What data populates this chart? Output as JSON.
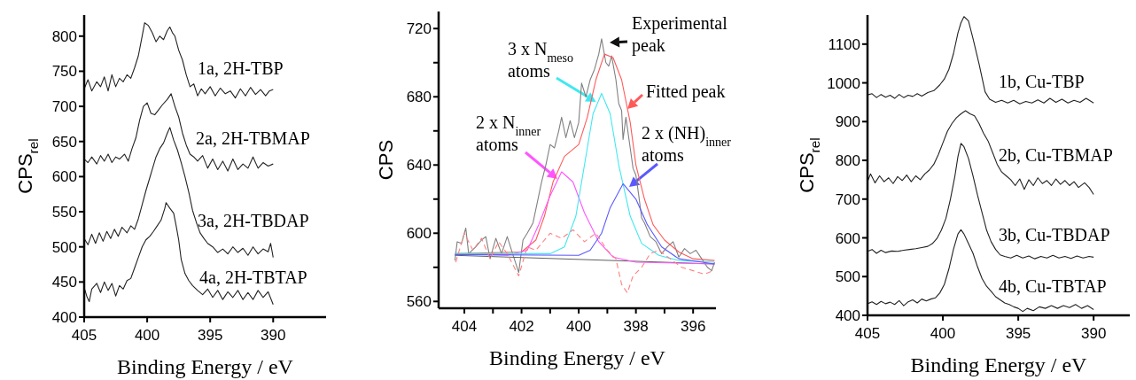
{
  "chart_data": [
    {
      "type": "line",
      "ylabel": "CPS$_{rel}$",
      "xlabel": "Binding Energy / eV",
      "xlim": [
        405,
        385.8
      ],
      "ylim": [
        400,
        830
      ],
      "xticks": [
        405,
        400,
        395,
        390
      ],
      "yticks": [
        400,
        450,
        500,
        550,
        600,
        650,
        700,
        750,
        800
      ],
      "marker": "none",
      "line_style": "solid",
      "series": [
        {
          "color": "#222222",
          "x": [
            405,
            404.7,
            404.4,
            404,
            403.7,
            403.4,
            403.1,
            402.8,
            402.5,
            402.2,
            401.9,
            401.6,
            401.3,
            401.0,
            400.7,
            400.4,
            400.2,
            399.9,
            399.6,
            399.3,
            399.0,
            398.7,
            398.4,
            398.2,
            398.0,
            397.8,
            397.5,
            397.2,
            396.9,
            396.6,
            396.3,
            396.0,
            395.7,
            395.4,
            395.0,
            394.6,
            394.2,
            393.8,
            393.4,
            393.0,
            392.6,
            392.2,
            391.8,
            391.4,
            391.0,
            390.6,
            390.3,
            390.0
          ],
          "name": "1a, 2H-TBP",
          "values": [
            725,
            738,
            722,
            735,
            728,
            742,
            722,
            745,
            728,
            740,
            735,
            745,
            740,
            755,
            772,
            800,
            819,
            815,
            805,
            792,
            800,
            795,
            808,
            813,
            805,
            800,
            780,
            766,
            745,
            728,
            732,
            715,
            725,
            718,
            728,
            715,
            726,
            718,
            722,
            712,
            725,
            715,
            727,
            717,
            724,
            715,
            722,
            724
          ]
        },
        {
          "color": "#222222",
          "x": [
            405,
            404.7,
            404.4,
            404.0,
            403.7,
            403.4,
            403.1,
            402.8,
            402.5,
            402.2,
            401.8,
            401.5,
            401.2,
            400.9,
            400.6,
            400.3,
            400.0,
            399.7,
            399.4,
            399.1,
            398.8,
            398.4,
            398.1,
            397.8,
            397.5,
            397.2,
            396.9,
            396.6,
            396.3,
            396.0,
            395.6,
            395.2,
            394.8,
            394.4,
            394.0,
            393.6,
            393.2,
            392.8,
            392.4,
            392.0,
            391.6,
            391.2,
            390.8,
            390.4,
            390.0
          ],
          "name": "2a, 2H-TBMAP",
          "values": [
            625,
            620,
            628,
            618,
            630,
            622,
            632,
            620,
            628,
            625,
            632,
            622,
            640,
            655,
            680,
            700,
            705,
            690,
            688,
            695,
            702,
            710,
            718,
            700,
            685,
            662,
            645,
            632,
            628,
            622,
            630,
            612,
            625,
            610,
            622,
            608,
            625,
            610,
            618,
            612,
            628,
            612,
            620,
            615,
            618
          ]
        },
        {
          "color": "#222222",
          "x": [
            405,
            404.7,
            404.4,
            404.1,
            403.8,
            403.5,
            403.2,
            402.9,
            402.6,
            402.3,
            402.0,
            401.6,
            401.3,
            401.0,
            400.7,
            400.4,
            400.1,
            399.8,
            399.6,
            399.3,
            399.0,
            398.7,
            398.4,
            398.2,
            397.9,
            397.6,
            397.3,
            397.0,
            396.7,
            396.4,
            396.1,
            395.8,
            395.5,
            395.2,
            394.8,
            394.4,
            394.0,
            393.6,
            393.2,
            392.8,
            392.4,
            392.0,
            391.6,
            391.2,
            390.8,
            390.4,
            390.2,
            390.0
          ],
          "name": "3a, 2H-TBDAP",
          "values": [
            512,
            503,
            518,
            505,
            520,
            508,
            522,
            512,
            525,
            515,
            528,
            520,
            530,
            525,
            540,
            560,
            580,
            598,
            610,
            628,
            640,
            648,
            662,
            670,
            652,
            638,
            620,
            600,
            578,
            552,
            535,
            520,
            512,
            505,
            500,
            492,
            497,
            490,
            500,
            492,
            498,
            488,
            500,
            490,
            497,
            493,
            505,
            485
          ]
        },
        {
          "color": "#222222",
          "x": [
            405,
            404.8,
            404.6,
            404.4,
            404.0,
            403.7,
            403.4,
            403.1,
            402.8,
            402.5,
            402.2,
            401.9,
            401.6,
            401.3,
            401.0,
            400.7,
            400.4,
            400.1,
            399.8,
            399.5,
            399.2,
            398.9,
            398.6,
            398.5,
            398.2,
            397.9,
            397.7,
            397.5,
            397.3,
            397.0,
            396.7,
            396.4,
            396.0,
            395.6,
            395.2,
            394.8,
            394.4,
            394.0,
            393.6,
            393.2,
            392.8,
            392.4,
            392.0,
            391.6,
            391.2,
            390.8,
            390.4,
            390.0
          ],
          "name": "4a, 2H-TBTAP",
          "values": [
            442,
            430,
            422,
            440,
            448,
            435,
            450,
            438,
            448,
            430,
            445,
            440,
            452,
            455,
            470,
            485,
            500,
            510,
            515,
            522,
            530,
            538,
            555,
            563,
            555,
            548,
            530,
            510,
            482,
            462,
            452,
            445,
            438,
            432,
            440,
            428,
            438,
            425,
            436,
            428,
            438,
            425,
            435,
            425,
            438,
            428,
            436,
            418
          ]
        }
      ]
    },
    {
      "type": "line",
      "ylabel": "CPS",
      "xlabel": "Binding Energy / eV",
      "xlim": [
        404.9,
        395.2
      ],
      "ylim": [
        556,
        730
      ],
      "xticks": [
        404,
        {
          "value": 403,
          "label": null
        },
        402,
        {
          "value": 401,
          "label": null
        },
        400,
        {
          "value": 399,
          "label": null
        },
        398,
        {
          "value": 397,
          "label": null
        },
        396
      ],
      "yticks": [
        560,
        {
          "value": 580,
          "label": null
        },
        600,
        {
          "value": 620,
          "label": null
        },
        640,
        {
          "value": 660,
          "label": null
        },
        680,
        {
          "value": 700,
          "label": null
        },
        720
      ],
      "marker": "none",
      "line_style": "solid",
      "series": [
        {
          "color": "#808080",
          "x": [
            404.33,
            404.25,
            404.1,
            403.95,
            403.85,
            403.6,
            403.4,
            403.25,
            403.1,
            402.9,
            402.7,
            402.5,
            402.35,
            402.1,
            401.95,
            401.8,
            401.6,
            401.45,
            401.3,
            401.15,
            401.0,
            400.85,
            400.7,
            400.6,
            400.45,
            400.3,
            400.15,
            400.0,
            399.9,
            399.75,
            399.6,
            399.45,
            399.3,
            399.2,
            399.05,
            398.95,
            398.85,
            398.7,
            398.6,
            398.5,
            398.45,
            398.35,
            398.2,
            398.1,
            398.0,
            397.9,
            397.8,
            397.7,
            397.5,
            397.3,
            397.1,
            396.9,
            396.7,
            396.5,
            396.3,
            396.1,
            395.9,
            395.7,
            395.5,
            395.35,
            395.25
          ],
          "values": [
            584,
            595,
            594,
            603,
            588,
            592,
            596,
            598,
            585,
            597,
            588,
            598,
            590,
            577,
            596,
            600,
            606,
            618,
            630,
            640,
            652,
            650,
            660,
            668,
            656,
            666,
            656,
            665,
            688,
            680,
            690,
            696,
            705,
            714,
            700,
            698,
            704,
            690,
            676,
            672,
            655,
            668,
            650,
            638,
            634,
            622,
            609,
            606,
            598,
            595,
            588,
            592,
            595,
            586,
            591,
            588,
            590,
            585,
            580,
            578,
            583
          ]
        },
        {
          "color": "#606060",
          "x": [
            404.33,
            395.25
          ],
          "values": [
            587,
            582
          ]
        },
        {
          "color": "#ff5a5a",
          "x": [
            404.33,
            402.0,
            401.5,
            401.2,
            400.9,
            400.5,
            400.0,
            399.7,
            399.4,
            399.1,
            398.8,
            398.5,
            398.2,
            398.0,
            397.7,
            397.4,
            397.0,
            396.5,
            396.0,
            395.25
          ],
          "values": [
            588,
            589,
            596,
            610,
            630,
            645,
            652,
            668,
            690,
            705,
            703,
            690,
            665,
            640,
            620,
            605,
            596,
            589,
            585,
            584
          ]
        },
        {
          "color": "#ff55ff",
          "x": [
            404.33,
            402.5,
            401.8,
            401.4,
            401.0,
            400.6,
            400.2,
            399.8,
            399.3,
            398.8,
            398.0,
            395.25
          ],
          "values": [
            588,
            587,
            590,
            605,
            622,
            636,
            630,
            612,
            595,
            586,
            583,
            582
          ]
        },
        {
          "color": "#40e8f0",
          "x": [
            404.33,
            401.0,
            400.5,
            400.1,
            399.8,
            399.5,
            399.2,
            398.9,
            398.6,
            398.2,
            397.8,
            397.2,
            396.5,
            395.25
          ],
          "values": [
            588,
            588,
            592,
            610,
            640,
            670,
            682,
            670,
            640,
            610,
            594,
            587,
            584,
            583
          ]
        },
        {
          "color": "#5a5aff",
          "x": [
            404.33,
            400.0,
            399.6,
            399.2,
            398.9,
            398.45,
            398.0,
            397.6,
            397.1,
            396.5,
            395.25
          ],
          "values": [
            587.5,
            587,
            590,
            600,
            615,
            629,
            620,
            605,
            592,
            585,
            582
          ]
        },
        {
          "color": "#ff8080",
          "line_style": "dashed",
          "x": [
            404.3,
            404.0,
            403.7,
            403.4,
            403.1,
            402.8,
            402.5,
            402.1,
            401.8,
            401.5,
            401.0,
            400.6,
            400.2,
            399.8,
            399.4,
            399.0,
            398.7,
            398.5,
            398.3,
            398.1,
            397.8,
            397.5,
            397.2,
            396.8,
            396.4,
            396.0,
            395.6,
            395.3
          ],
          "values": [
            583,
            600,
            590,
            597,
            585,
            595,
            588,
            575,
            592,
            590,
            600,
            597,
            602,
            595,
            600,
            590,
            585,
            570,
            565,
            575,
            580,
            588,
            590,
            585,
            580,
            578,
            576,
            578
          ]
        }
      ],
      "annotations": [
        "Experimental peak",
        {
          "text": "3 x N$_{meso}$ atoms",
          "x": 399.4,
          "y": 677
        },
        "Fitted peak",
        "2 x N$_{inner}$ atoms",
        "2 x (NH)$_{inner}$ atoms"
      ]
    },
    {
      "type": "line",
      "ylabel": "CPS$_{rel}$",
      "xlabel": "Binding Energy / eV",
      "xlim": [
        405,
        387.6
      ],
      "ylim": [
        400,
        1175
      ],
      "xticks": [
        405,
        400,
        395,
        390
      ],
      "yticks": [
        400,
        500,
        600,
        700,
        800,
        900,
        1000,
        1100
      ],
      "marker": "none",
      "line_style": "solid",
      "series": [
        {
          "color": "#222222",
          "x": [
            405,
            404.7,
            404.4,
            404.1,
            403.8,
            403.5,
            403.2,
            402.9,
            402.6,
            402.3,
            402.0,
            401.7,
            401.4,
            401.0,
            400.6,
            400.2,
            399.9,
            399.6,
            399.3,
            399.0,
            398.8,
            398.6,
            398.3,
            398.0,
            397.6,
            397.2,
            396.9,
            396.5,
            396.1,
            395.7,
            395.3,
            394.9,
            394.5,
            394.1,
            393.7,
            393.3,
            392.9,
            392.5,
            392.1,
            391.7,
            391.3,
            390.9,
            390.5,
            390.0
          ],
          "name": "1b, Cu-TBP",
          "values": [
            969,
            972,
            962,
            970,
            963,
            968,
            960,
            970,
            962,
            968,
            965,
            972,
            966,
            975,
            980,
            995,
            1010,
            1035,
            1075,
            1129,
            1155,
            1171,
            1160,
            1114,
            1049,
            977,
            958,
            950,
            955,
            948,
            955,
            946,
            952,
            948,
            956,
            948,
            960,
            950,
            958,
            948,
            955,
            950,
            960,
            948
          ]
        },
        {
          "color": "#222222",
          "x": [
            405,
            404.8,
            404.5,
            404.2,
            403.9,
            403.6,
            403.3,
            403.0,
            402.7,
            402.4,
            402.1,
            401.8,
            401.5,
            401.2,
            400.9,
            400.6,
            400.3,
            400.0,
            399.7,
            399.4,
            399.1,
            398.8,
            398.5,
            398.2,
            397.9,
            397.6,
            397.3,
            397.0,
            396.7,
            396.4,
            396.1,
            395.8,
            395.5,
            395.2,
            394.9,
            394.6,
            394.3,
            394.0,
            393.7,
            393.4,
            393.1,
            392.8,
            392.5,
            392.2,
            391.9,
            391.6,
            391.3,
            391.0,
            390.6,
            390.3,
            390.0
          ],
          "name": "2b, Cu-TBMAP",
          "values": [
            745,
            765,
            742,
            760,
            745,
            755,
            740,
            758,
            748,
            762,
            745,
            760,
            750,
            765,
            775,
            790,
            815,
            845,
            875,
            895,
            910,
            920,
            928,
            920,
            915,
            895,
            870,
            850,
            820,
            790,
            770,
            760,
            750,
            735,
            752,
            725,
            750,
            735,
            755,
            740,
            748,
            735,
            752,
            738,
            748,
            735,
            745,
            730,
            742,
            730,
            712
          ]
        },
        {
          "color": "#222222",
          "x": [
            405,
            404.7,
            404.4,
            404.1,
            403.8,
            403.4,
            403.0,
            402.6,
            402.2,
            401.8,
            401.4,
            401.0,
            400.7,
            400.4,
            400.1,
            399.8,
            399.5,
            399.2,
            399.0,
            398.8,
            398.6,
            398.3,
            398.0,
            397.7,
            397.4,
            397.1,
            396.8,
            396.5,
            396.2,
            395.9,
            395.5,
            395.1,
            394.7,
            394.3,
            393.9,
            393.5,
            393.1,
            392.7,
            392.3,
            391.9,
            391.5,
            391.1,
            390.7,
            390.3,
            390.0
          ],
          "name": "3b, Cu-TBDAP",
          "values": [
            565,
            570,
            560,
            568,
            562,
            566,
            565,
            568,
            570,
            572,
            575,
            578,
            585,
            598,
            620,
            650,
            700,
            760,
            810,
            844,
            835,
            805,
            760,
            710,
            665,
            620,
            590,
            570,
            556,
            552,
            548,
            555,
            548,
            553,
            546,
            552,
            548,
            555,
            548,
            552,
            547,
            553,
            548,
            552,
            550
          ]
        },
        {
          "color": "#222222",
          "x": [
            405,
            404.7,
            404.4,
            404.1,
            403.8,
            403.5,
            403.2,
            402.9,
            402.6,
            402.3,
            402.0,
            401.7,
            401.4,
            401.1,
            400.8,
            400.5,
            400.2,
            399.9,
            399.6,
            399.3,
            399.0,
            398.8,
            398.6,
            398.3,
            398.0,
            397.7,
            397.4,
            397.1,
            396.8,
            396.5,
            396.2,
            395.9,
            395.6,
            395.3,
            395.0,
            394.7,
            394.4,
            394.0,
            393.6,
            393.2,
            392.8,
            392.4,
            392.0,
            391.6,
            391.2,
            390.8,
            390.4,
            390.0
          ],
          "name": "4b, Cu-TBTAP",
          "values": [
            430,
            435,
            428,
            436,
            430,
            434,
            428,
            438,
            425,
            435,
            440,
            432,
            442,
            437,
            442,
            445,
            458,
            480,
            520,
            570,
            610,
            621,
            610,
            585,
            560,
            525,
            495,
            475,
            462,
            448,
            440,
            432,
            428,
            422,
            418,
            410,
            418,
            412,
            422,
            418,
            425,
            418,
            425,
            420,
            428,
            418,
            425,
            415
          ]
        }
      ]
    }
  ]
}
